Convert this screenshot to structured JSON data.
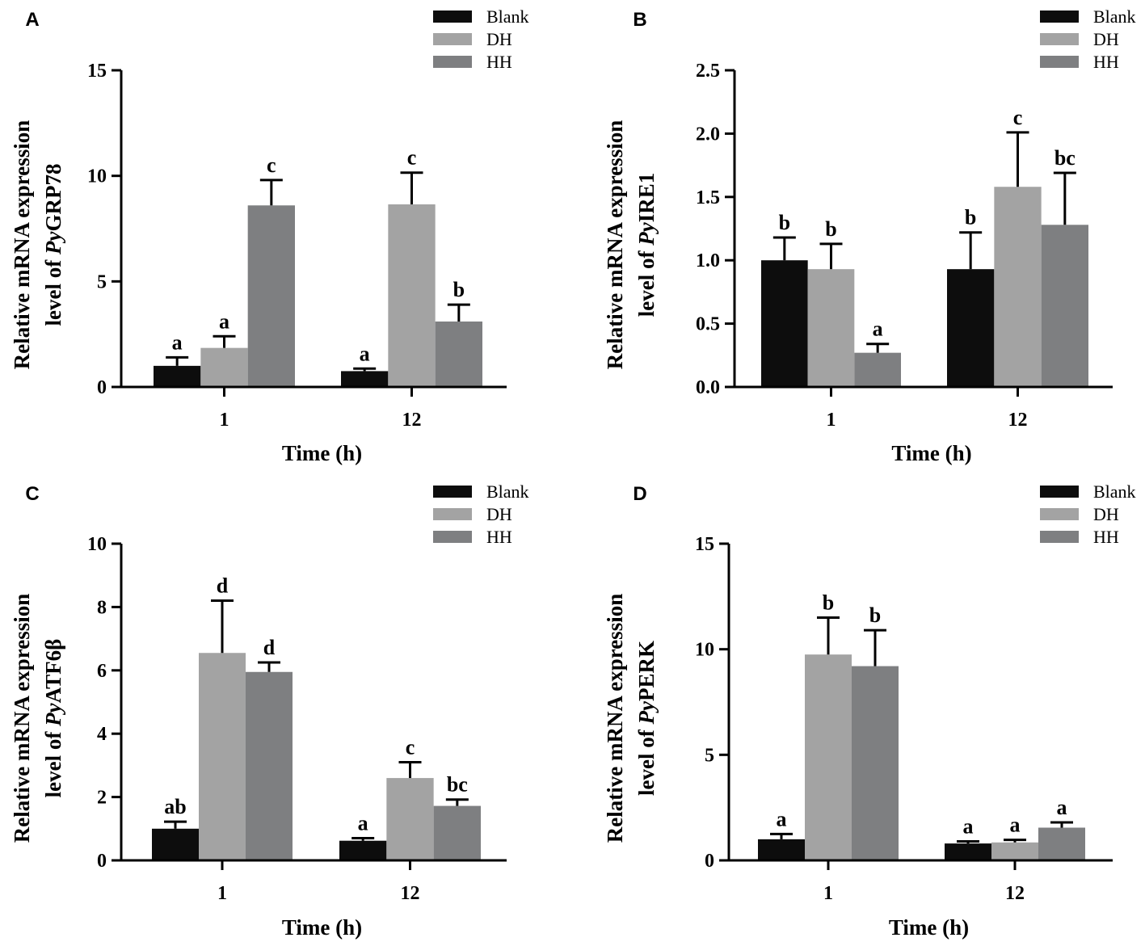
{
  "figure": {
    "series_colors": {
      "Blank": "#0d0d0d",
      "DH": "#a3a3a3",
      "HH": "#7e7f81"
    }
  },
  "chart_data": [
    {
      "panel": "A",
      "type": "bar",
      "categories": [
        "1",
        "12"
      ],
      "series": [
        {
          "name": "Blank",
          "values": [
            1.0,
            0.75
          ],
          "errors": [
            0.4,
            0.12
          ],
          "labels": [
            "a",
            "a"
          ]
        },
        {
          "name": "DH",
          "values": [
            1.85,
            8.65
          ],
          "errors": [
            0.55,
            1.5
          ],
          "labels": [
            "a",
            "c"
          ]
        },
        {
          "name": "HH",
          "values": [
            8.6,
            3.1
          ],
          "errors": [
            1.2,
            0.8
          ],
          "labels": [
            "c",
            "b"
          ]
        }
      ],
      "ylim": [
        0,
        15
      ],
      "yticks": [
        "0",
        "5",
        "10",
        "15"
      ],
      "ytick_values": [
        0,
        5,
        10,
        15
      ],
      "xlabel": "Time (h)",
      "ylabel_line1": "Relative mRNA expression",
      "ylabel_line2_prefix": "level of ",
      "ylabel_italic": "Py",
      "ylabel_gene": "GRP78",
      "legend": [
        "Blank",
        "DH",
        "HH"
      ]
    },
    {
      "panel": "B",
      "type": "bar",
      "categories": [
        "1",
        "12"
      ],
      "series": [
        {
          "name": "Blank",
          "values": [
            1.0,
            0.93
          ],
          "errors": [
            0.18,
            0.29
          ],
          "labels": [
            "b",
            "b"
          ]
        },
        {
          "name": "DH",
          "values": [
            0.93,
            1.58
          ],
          "errors": [
            0.2,
            0.43
          ],
          "labels": [
            "b",
            "c"
          ]
        },
        {
          "name": "HH",
          "values": [
            0.27,
            1.28
          ],
          "errors": [
            0.07,
            0.41
          ],
          "labels": [
            "a",
            "bc"
          ]
        }
      ],
      "ylim": [
        0,
        2.5
      ],
      "yticks": [
        "0.0",
        "0.5",
        "1.0",
        "1.5",
        "2.0",
        "2.5"
      ],
      "ytick_values": [
        0,
        0.5,
        1.0,
        1.5,
        2.0,
        2.5
      ],
      "xlabel": "Time (h)",
      "ylabel_line1": "Relative mRNA expression",
      "ylabel_line2_prefix": "level of ",
      "ylabel_italic": "Py",
      "ylabel_gene": "IRE1",
      "legend": [
        "Blank",
        "DH",
        "HH"
      ]
    },
    {
      "panel": "C",
      "type": "bar",
      "categories": [
        "1",
        "12"
      ],
      "series": [
        {
          "name": "Blank",
          "values": [
            1.0,
            0.62
          ],
          "errors": [
            0.22,
            0.08
          ],
          "labels": [
            "ab",
            "a"
          ]
        },
        {
          "name": "DH",
          "values": [
            6.55,
            2.6
          ],
          "errors": [
            1.65,
            0.5
          ],
          "labels": [
            "d",
            "c"
          ]
        },
        {
          "name": "HH",
          "values": [
            5.95,
            1.72
          ],
          "errors": [
            0.3,
            0.2
          ],
          "labels": [
            "d",
            "bc"
          ]
        }
      ],
      "ylim": [
        0,
        10
      ],
      "yticks": [
        "0",
        "2",
        "4",
        "6",
        "8",
        "10"
      ],
      "ytick_values": [
        0,
        2,
        4,
        6,
        8,
        10
      ],
      "xlabel": "Time (h)",
      "ylabel_line1": "Relative mRNA expression",
      "ylabel_line2_prefix": "level of ",
      "ylabel_italic": "Py",
      "ylabel_gene": "ATF6β",
      "legend": [
        "Blank",
        "DH",
        "HH"
      ]
    },
    {
      "panel": "D",
      "type": "bar",
      "categories": [
        "1",
        "12"
      ],
      "series": [
        {
          "name": "Blank",
          "values": [
            1.0,
            0.8
          ],
          "errors": [
            0.25,
            0.1
          ],
          "labels": [
            "a",
            "a"
          ]
        },
        {
          "name": "DH",
          "values": [
            9.75,
            0.85
          ],
          "errors": [
            1.75,
            0.12
          ],
          "labels": [
            "b",
            "a"
          ]
        },
        {
          "name": "HH",
          "values": [
            9.2,
            1.55
          ],
          "errors": [
            1.7,
            0.25
          ],
          "labels": [
            "b",
            "a"
          ]
        }
      ],
      "ylim": [
        0,
        15
      ],
      "yticks": [
        "0",
        "5",
        "10",
        "15"
      ],
      "ytick_values": [
        0,
        5,
        10,
        15
      ],
      "xlabel": "Time (h)",
      "ylabel_line1": "Relative mRNA expression",
      "ylabel_line2_prefix": "level of ",
      "ylabel_italic": "Py",
      "ylabel_gene": "PERK",
      "legend": [
        "Blank",
        "DH",
        "HH"
      ]
    }
  ]
}
